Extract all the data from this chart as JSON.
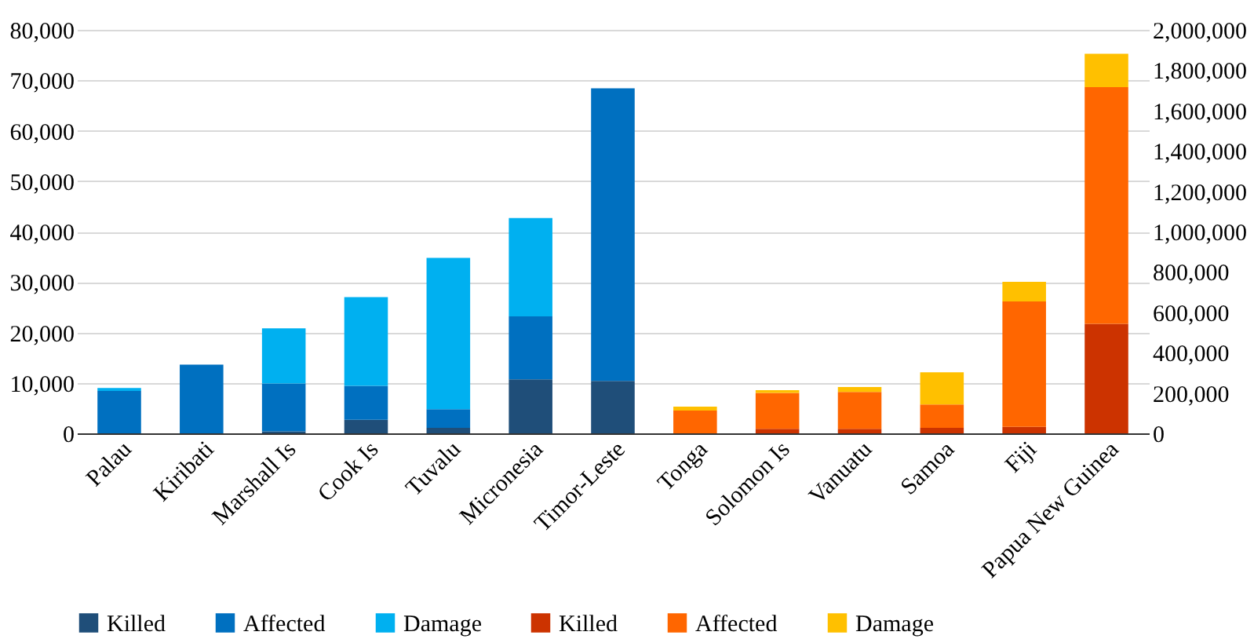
{
  "chart_data": {
    "type": "bar",
    "stacked": true,
    "categories": [
      "Palau",
      "Kiribati",
      "Marshall Is",
      "Cook Is",
      "Tuvalu",
      "Micronesia",
      "Timor-Leste",
      "Tonga",
      "Solomon Is",
      "Vanuatu",
      "Samoa",
      "Fiji",
      "Papua New Guinea"
    ],
    "series": [
      {
        "name": "Killed",
        "color": "#1f4e79",
        "values": [
          null,
          null,
          400,
          2700,
          1100,
          10700,
          10400,
          null,
          null,
          null,
          null,
          null,
          null
        ]
      },
      {
        "name": "Affected",
        "color": "#0070c0",
        "values": [
          8400,
          13600,
          9500,
          6700,
          3700,
          12500,
          58000,
          null,
          null,
          null,
          null,
          null,
          null
        ]
      },
      {
        "name": "Damage",
        "color": "#00b0f0",
        "values": [
          600,
          null,
          10900,
          17600,
          30000,
          19500,
          null,
          null,
          null,
          null,
          null,
          null,
          null
        ]
      },
      {
        "name": "Killed",
        "color": "#cc3300",
        "axis": "y2",
        "values": [
          null,
          null,
          null,
          null,
          null,
          null,
          null,
          null,
          22000,
          22000,
          27000,
          32000,
          543000
        ]
      },
      {
        "name": "Affected",
        "color": "#ff6600",
        "axis": "y2",
        "values": [
          null,
          null,
          null,
          null,
          null,
          null,
          null,
          113000,
          178000,
          183000,
          116000,
          622000,
          1173000
        ]
      },
      {
        "name": "Damage",
        "color": "#ffc000",
        "axis": "y2",
        "values": [
          null,
          null,
          null,
          null,
          null,
          null,
          null,
          19000,
          14000,
          25000,
          160000,
          97000,
          165000
        ]
      }
    ],
    "ylim": [
      0,
      80000
    ],
    "yticks": [
      0,
      {
        "value": 10000,
        "label": "10,000"
      },
      {
        "value": 20000,
        "label": "20,000"
      },
      {
        "value": 30000,
        "label": "30,000"
      },
      {
        "value": 40000,
        "label": "40,000"
      },
      {
        "value": 50000,
        "label": "50,000"
      },
      {
        "value": 60000,
        "label": "60,000"
      },
      {
        "value": 70000,
        "label": "70,000"
      },
      {
        "value": 80000,
        "label": "80,000"
      }
    ],
    "y2lim": [
      0,
      2000000
    ],
    "y2ticks": [
      0,
      {
        "value": 200000,
        "label": "200,000"
      },
      {
        "value": 400000,
        "label": "400,000"
      },
      {
        "value": 600000,
        "label": "600,000"
      },
      {
        "value": 800000,
        "label": "800,000"
      },
      {
        "value": 1000000,
        "label": "1,000,000"
      },
      {
        "value": 1200000,
        "label": "1,200,000"
      },
      {
        "value": 1400000,
        "label": "1,400,000"
      },
      {
        "value": 1600000,
        "label": "1,600,000"
      },
      {
        "value": 1800000,
        "label": "1,800,000"
      },
      {
        "value": 2000000,
        "label": "2,000,000"
      }
    ],
    "grid": "y",
    "legend": "bottom"
  }
}
